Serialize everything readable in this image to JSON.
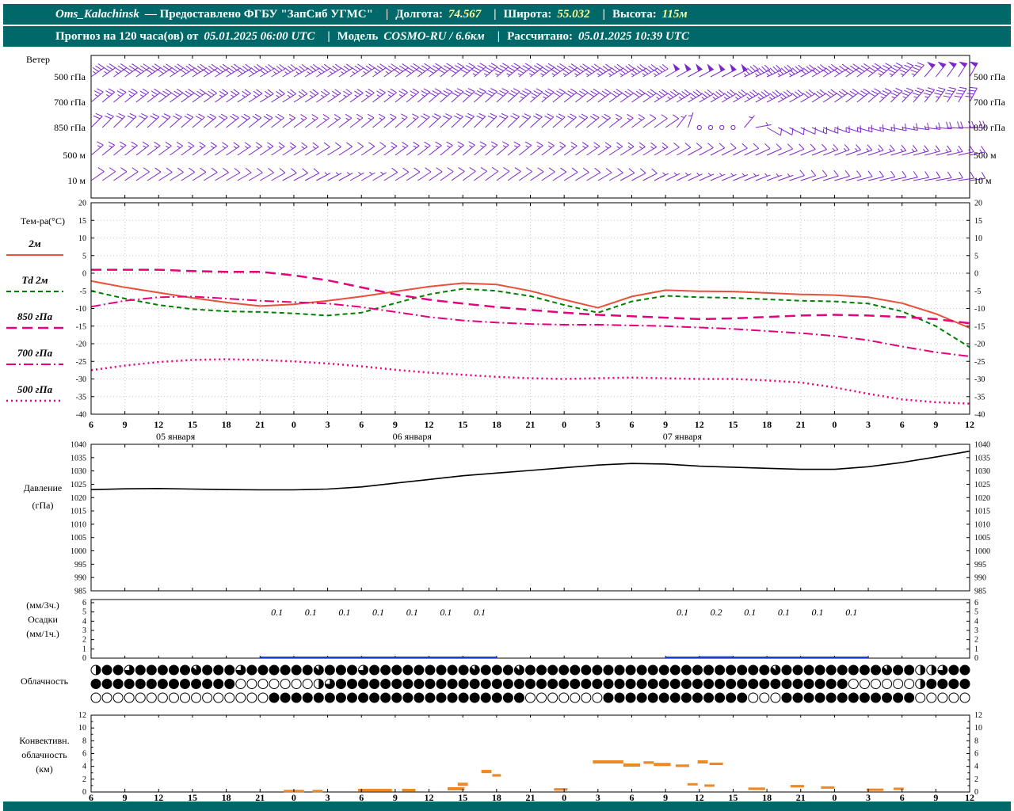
{
  "header": {
    "title": "Oms_Kalachinsk",
    "subtitle": "— Предоставлено ФГБУ \"ЗапСиб УГМС\"",
    "sep": "|",
    "lon_label": "Долгота:",
    "lon_value": "74.567",
    "lat_label": "Широта:",
    "lat_value": "55.032",
    "alt_label": "Высота:",
    "alt_value": "115м",
    "forecast_label": "Прогноз на 120 часа(ов) от",
    "forecast_start": "05.01.2025 06:00 UTC",
    "model_label": "Модель",
    "model_value": "COSMO-RU / 6.6км",
    "computed_label": "Рассчитано:",
    "computed_value": "05.01.2025 10:39 UTC"
  },
  "colors": {
    "header_bg": "#006868",
    "wind_barb": "#7d26cd",
    "temp_2m": "#e8503a",
    "td_2m": "#008000",
    "temp_upper": "#e6007e",
    "pressure": "#000000",
    "precip": "#1a3fd4",
    "convective": "#ee8822",
    "grid": "#c8c8c8",
    "axis": "#000000"
  },
  "chart_data": {
    "type": "meteogram",
    "time_axis": {
      "tick_labels": [
        "6",
        "9",
        "12",
        "15",
        "18",
        "21",
        "0",
        "3",
        "6",
        "9",
        "12",
        "15",
        "18",
        "21",
        "0",
        "3",
        "6",
        "9",
        "12",
        "15",
        "18",
        "21",
        "0",
        "3",
        "6",
        "9",
        "12"
      ],
      "date_labels": [
        "05 января",
        "06 января",
        "07 января"
      ],
      "step_hours": 3
    },
    "wind": {
      "label": "Ветер",
      "levels": [
        {
          "name": "500 гПа",
          "barbs": [
            [
              55,
              35
            ],
            [
              55,
              38
            ],
            [
              56,
              40
            ],
            [
              58,
              42
            ],
            [
              58,
              40
            ],
            [
              60,
              38
            ],
            [
              60,
              36
            ],
            [
              58,
              35
            ],
            [
              56,
              36
            ],
            [
              55,
              38
            ],
            [
              52,
              40
            ],
            [
              50,
              42
            ],
            [
              50,
              45
            ],
            [
              52,
              46
            ],
            [
              55,
              45
            ],
            [
              58,
              44
            ],
            [
              60,
              45
            ],
            [
              60,
              48
            ],
            [
              62,
              50
            ],
            [
              63,
              48
            ],
            [
              65,
              45
            ],
            [
              62,
              42
            ],
            [
              58,
              40
            ],
            [
              52,
              42
            ],
            [
              45,
              46
            ],
            [
              38,
              50
            ],
            [
              30,
              52
            ]
          ]
        },
        {
          "name": "700 гПа",
          "barbs": [
            [
              50,
              25
            ],
            [
              52,
              26
            ],
            [
              54,
              28
            ],
            [
              55,
              28
            ],
            [
              56,
              27
            ],
            [
              58,
              26
            ],
            [
              58,
              25
            ],
            [
              56,
              24
            ],
            [
              54,
              25
            ],
            [
              52,
              26
            ],
            [
              50,
              28
            ],
            [
              48,
              30
            ],
            [
              48,
              32
            ],
            [
              50,
              33
            ],
            [
              52,
              32
            ],
            [
              54,
              31
            ],
            [
              56,
              32
            ],
            [
              58,
              33
            ],
            [
              60,
              34
            ],
            [
              60,
              34
            ],
            [
              62,
              33
            ],
            [
              60,
              32
            ],
            [
              56,
              31
            ],
            [
              50,
              32
            ],
            [
              44,
              34
            ],
            [
              36,
              37
            ],
            [
              28,
              40
            ]
          ]
        },
        {
          "name": "850 гПа",
          "barbs": [
            [
              45,
              18
            ],
            [
              46,
              19
            ],
            [
              48,
              20
            ],
            [
              50,
              20
            ],
            [
              52,
              19
            ],
            [
              52,
              18
            ],
            [
              54,
              17
            ],
            [
              54,
              16
            ],
            [
              52,
              16
            ],
            [
              50,
              17
            ],
            [
              48,
              18
            ],
            [
              46,
              20
            ],
            [
              46,
              21
            ],
            [
              48,
              22
            ],
            [
              50,
              21
            ],
            [
              52,
              18
            ],
            [
              54,
              14
            ],
            [
              56,
              8
            ],
            [
              0,
              1
            ],
            [
              0,
              1
            ],
            [
              120,
              8
            ],
            [
              115,
              12
            ],
            [
              110,
              14
            ],
            [
              105,
              15
            ],
            [
              100,
              16
            ],
            [
              95,
              18
            ],
            [
              90,
              20
            ]
          ]
        },
        {
          "name": "500 м",
          "barbs": [
            [
              50,
              14
            ],
            [
              52,
              15
            ],
            [
              54,
              16
            ],
            [
              54,
              16
            ],
            [
              56,
              15
            ],
            [
              56,
              14
            ],
            [
              58,
              13
            ],
            [
              58,
              12
            ],
            [
              56,
              12
            ],
            [
              54,
              13
            ],
            [
              52,
              14
            ],
            [
              50,
              15
            ],
            [
              50,
              16
            ],
            [
              52,
              17
            ],
            [
              54,
              16
            ],
            [
              56,
              15
            ],
            [
              58,
              14
            ],
            [
              60,
              12
            ],
            [
              62,
              10
            ],
            [
              64,
              10
            ],
            [
              66,
              11
            ],
            [
              68,
              12
            ],
            [
              70,
              13
            ],
            [
              72,
              14
            ],
            [
              74,
              15
            ],
            [
              76,
              16
            ],
            [
              78,
              17
            ]
          ]
        },
        {
          "name": "10 м",
          "barbs": [
            [
              55,
              8
            ],
            [
              56,
              9
            ],
            [
              58,
              10
            ],
            [
              58,
              10
            ],
            [
              60,
              9
            ],
            [
              60,
              8
            ],
            [
              62,
              8
            ],
            [
              62,
              7
            ],
            [
              60,
              7
            ],
            [
              58,
              8
            ],
            [
              56,
              9
            ],
            [
              54,
              10
            ],
            [
              54,
              11
            ],
            [
              56,
              11
            ],
            [
              58,
              10
            ],
            [
              60,
              9
            ],
            [
              62,
              8
            ],
            [
              64,
              7
            ],
            [
              66,
              6
            ],
            [
              68,
              6
            ],
            [
              70,
              7
            ],
            [
              72,
              8
            ],
            [
              74,
              8
            ],
            [
              76,
              9
            ],
            [
              78,
              10
            ],
            [
              80,
              10
            ],
            [
              82,
              11
            ]
          ]
        }
      ]
    },
    "temperature": {
      "label": "Тем-ра(°C)",
      "ylim": [
        -40,
        20
      ],
      "yticks": [
        20,
        15,
        10,
        5,
        0,
        -5,
        -10,
        -15,
        -20,
        -25,
        -30,
        -35,
        -40
      ],
      "series": [
        {
          "name": "2м",
          "style": "solid",
          "color_key": "temp_2m",
          "width": 2,
          "values": [
            -2.2,
            -4,
            -5.5,
            -7,
            -8.3,
            -9.3,
            -8.8,
            -7.8,
            -6.6,
            -5.2,
            -3.8,
            -2.8,
            -3.2,
            -5,
            -7.5,
            -9.8,
            -6.6,
            -4.8,
            -5.1,
            -5.2,
            -5.6,
            -6,
            -6.2,
            -6.8,
            -8.5,
            -11.5,
            -15.5
          ]
        },
        {
          "name": "Td 2м",
          "style": "dashed",
          "color_key": "td_2m",
          "width": 2,
          "values": [
            -5,
            -7.2,
            -9,
            -10.2,
            -10.8,
            -11,
            -11.4,
            -12,
            -11.2,
            -8.5,
            -6,
            -4.4,
            -5,
            -6.5,
            -9,
            -11.2,
            -8,
            -6.4,
            -6.8,
            -7,
            -7.4,
            -7.8,
            -8,
            -8.6,
            -10.8,
            -15,
            -21
          ]
        },
        {
          "name": "850 гПа",
          "style": "longdash",
          "color_key": "temp_upper",
          "width": 2.5,
          "values": [
            1,
            1,
            1,
            0.6,
            0.4,
            0.4,
            -0.6,
            -2,
            -4,
            -6,
            -7.5,
            -8.6,
            -9.6,
            -10.4,
            -11.2,
            -11.8,
            -12.2,
            -12.6,
            -13,
            -12.8,
            -12.4,
            -12,
            -11.8,
            -12,
            -12.4,
            -13,
            -14.2
          ]
        },
        {
          "name": "700 гПа",
          "style": "dashdot",
          "color_key": "temp_upper",
          "width": 2,
          "values": [
            -9.5,
            -7.8,
            -6.8,
            -6.6,
            -7.2,
            -7.8,
            -8.2,
            -8.6,
            -9.6,
            -11,
            -12.4,
            -13.4,
            -14,
            -14.4,
            -14.6,
            -14.6,
            -14.8,
            -15,
            -15.4,
            -15.8,
            -16.4,
            -17,
            -17.8,
            -19,
            -20.8,
            -22.4,
            -23.6
          ]
        },
        {
          "name": "500 гПа",
          "style": "dotted",
          "color_key": "temp_upper",
          "width": 2.5,
          "values": [
            -27.5,
            -26.2,
            -25.2,
            -24.6,
            -24.4,
            -24.6,
            -25,
            -25.6,
            -26.4,
            -27.4,
            -28.2,
            -28.8,
            -29.4,
            -29.8,
            -30,
            -29.8,
            -29.6,
            -29.8,
            -30,
            -30,
            -30.4,
            -31,
            -32.4,
            -34.2,
            -35.8,
            -36.6,
            -37
          ]
        }
      ]
    },
    "pressure": {
      "label1": "Давление",
      "label2": "(гПа)",
      "ylim": [
        985,
        1040
      ],
      "yticks": [
        1040,
        1035,
        1030,
        1025,
        1020,
        1015,
        1010,
        1005,
        1000,
        995,
        990,
        985
      ],
      "values": [
        1023,
        1023.3,
        1023.4,
        1023.2,
        1023,
        1022.9,
        1022.9,
        1023.2,
        1024,
        1025.4,
        1026.8,
        1028.2,
        1029.2,
        1030.2,
        1031.2,
        1032.2,
        1032.8,
        1032.6,
        1031.8,
        1031.4,
        1031,
        1030.6,
        1030.6,
        1031.6,
        1033.2,
        1035.2,
        1037.4
      ]
    },
    "precipitation": {
      "label_top": "(мм/3ч.)",
      "label_mid": "Осадки",
      "label_bot": "(мм/1ч.)",
      "ylim": [
        0,
        6
      ],
      "yticks": [
        6,
        5,
        4,
        3,
        2,
        1,
        0
      ],
      "bars": [
        {
          "t": 5,
          "v": 0.1
        },
        {
          "t": 6,
          "v": 0.1
        },
        {
          "t": 7,
          "v": 0.1
        },
        {
          "t": 8,
          "v": 0.1
        },
        {
          "t": 9,
          "v": 0.1
        },
        {
          "t": 10,
          "v": 0.1
        },
        {
          "t": 11,
          "v": 0.1
        },
        {
          "t": 17,
          "v": 0.1
        },
        {
          "t": 18,
          "v": 0.2
        },
        {
          "t": 19,
          "v": 0.1
        },
        {
          "t": 20,
          "v": 0.1
        },
        {
          "t": 21,
          "v": 0.1
        },
        {
          "t": 22,
          "v": 0.1
        }
      ]
    },
    "cloudiness": {
      "label": "Облачность",
      "rows": [
        "4886888887888688888878886888888888788878888888888888888888888788888888878844688",
        "8888888888888000000046888888888888888888888888888888888888888888888800000048888",
        "0000000000000000888888888888888888888880000000888888888888800088888888888800000"
      ]
    },
    "convective": {
      "label1": "Конвективн.",
      "label2": "облачность",
      "label3": "(км)",
      "ylim": [
        0,
        12
      ],
      "yticks": [
        12,
        10,
        8,
        6,
        4,
        2,
        0
      ],
      "bars": [
        [
          6.0,
          0.15,
          0.6,
          0.3
        ],
        [
          6.7,
          0.15,
          0.3,
          0.3
        ],
        [
          8.4,
          0.3,
          1.0,
          0.4
        ],
        [
          9.4,
          0.3,
          0.4,
          0.4
        ],
        [
          10.8,
          0.5,
          0.5,
          0.5
        ],
        [
          11.0,
          1.2,
          0.3,
          0.5
        ],
        [
          11.7,
          3.2,
          0.3,
          0.5
        ],
        [
          12.0,
          2.6,
          0.25,
          0.4
        ],
        [
          13.9,
          0.4,
          0.4,
          0.4
        ],
        [
          15.3,
          4.7,
          0.9,
          0.5
        ],
        [
          16.0,
          4.2,
          0.5,
          0.5
        ],
        [
          16.5,
          4.6,
          0.3,
          0.4
        ],
        [
          16.9,
          4.3,
          0.5,
          0.5
        ],
        [
          17.5,
          4.1,
          0.4,
          0.4
        ],
        [
          18.1,
          4.7,
          0.3,
          0.5
        ],
        [
          18.5,
          4.4,
          0.4,
          0.4
        ],
        [
          17.8,
          1.2,
          0.3,
          0.3
        ],
        [
          18.3,
          1.0,
          0.3,
          0.3
        ],
        [
          19.7,
          0.5,
          0.5,
          0.4
        ],
        [
          20.9,
          0.9,
          0.4,
          0.4
        ],
        [
          21.8,
          0.7,
          0.4,
          0.3
        ],
        [
          23.2,
          0.35,
          0.5,
          0.3
        ],
        [
          23.9,
          0.5,
          0.3,
          0.3
        ]
      ]
    }
  }
}
